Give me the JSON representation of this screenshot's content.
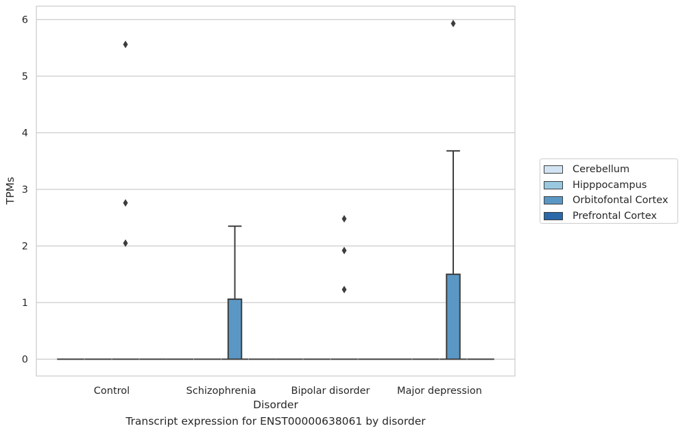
{
  "chart_data": {
    "type": "box",
    "title": "Transcript expression for ENST00000638061 by disorder",
    "xlabel": "Disorder",
    "ylabel": "TPMs",
    "categories": [
      "Control",
      "Schizophrenia",
      "Bipolar disorder",
      "Major depression"
    ],
    "y_ticks": [
      "0",
      "1",
      "2",
      "3",
      "4",
      "5",
      "6"
    ],
    "ylim": [
      -0.3,
      6.25
    ],
    "grid": "y",
    "legend_position": "right",
    "series": [
      {
        "name": "Cerebellum",
        "color": "#d2e3f3"
      },
      {
        "name": "Hipppocampus",
        "color": "#9ac8e0"
      },
      {
        "name": "Orbitofontal Cortex",
        "color": "#5a97c5"
      },
      {
        "name": "Prefrontal Cortex",
        "color": "#2a68aa"
      }
    ],
    "boxes": [
      {
        "category": "Control",
        "series": "Cerebellum",
        "q1": 0,
        "median": 0,
        "q3": 0,
        "whisker_low": 0,
        "whisker_high": 0,
        "outliers": []
      },
      {
        "category": "Control",
        "series": "Hipppocampus",
        "q1": 0,
        "median": 0,
        "q3": 0,
        "whisker_low": 0,
        "whisker_high": 0,
        "outliers": []
      },
      {
        "category": "Control",
        "series": "Orbitofontal Cortex",
        "q1": 0,
        "median": 0,
        "q3": 0,
        "whisker_low": 0,
        "whisker_high": 0,
        "outliers": [
          2.05,
          2.76,
          5.56
        ]
      },
      {
        "category": "Control",
        "series": "Prefrontal Cortex",
        "q1": 0,
        "median": 0,
        "q3": 0,
        "whisker_low": 0,
        "whisker_high": 0,
        "outliers": []
      },
      {
        "category": "Schizophrenia",
        "series": "Cerebellum",
        "q1": 0,
        "median": 0,
        "q3": 0,
        "whisker_low": 0,
        "whisker_high": 0,
        "outliers": []
      },
      {
        "category": "Schizophrenia",
        "series": "Hipppocampus",
        "q1": 0,
        "median": 0,
        "q3": 0,
        "whisker_low": 0,
        "whisker_high": 0,
        "outliers": []
      },
      {
        "category": "Schizophrenia",
        "series": "Orbitofontal Cortex",
        "q1": 0,
        "median": 0,
        "q3": 1.06,
        "whisker_low": 0,
        "whisker_high": 2.35,
        "outliers": []
      },
      {
        "category": "Schizophrenia",
        "series": "Prefrontal Cortex",
        "q1": 0,
        "median": 0,
        "q3": 0,
        "whisker_low": 0,
        "whisker_high": 0,
        "outliers": []
      },
      {
        "category": "Bipolar disorder",
        "series": "Cerebellum",
        "q1": 0,
        "median": 0,
        "q3": 0,
        "whisker_low": 0,
        "whisker_high": 0,
        "outliers": []
      },
      {
        "category": "Bipolar disorder",
        "series": "Hipppocampus",
        "q1": 0,
        "median": 0,
        "q3": 0,
        "whisker_low": 0,
        "whisker_high": 0,
        "outliers": []
      },
      {
        "category": "Bipolar disorder",
        "series": "Orbitofontal Cortex",
        "q1": 0,
        "median": 0,
        "q3": 0,
        "whisker_low": 0,
        "whisker_high": 0,
        "outliers": [
          1.23,
          1.92,
          2.48
        ]
      },
      {
        "category": "Bipolar disorder",
        "series": "Prefrontal Cortex",
        "q1": 0,
        "median": 0,
        "q3": 0,
        "whisker_low": 0,
        "whisker_high": 0,
        "outliers": []
      },
      {
        "category": "Major depression",
        "series": "Cerebellum",
        "q1": 0,
        "median": 0,
        "q3": 0,
        "whisker_low": 0,
        "whisker_high": 0,
        "outliers": []
      },
      {
        "category": "Major depression",
        "series": "Hipppocampus",
        "q1": 0,
        "median": 0,
        "q3": 0,
        "whisker_low": 0,
        "whisker_high": 0,
        "outliers": []
      },
      {
        "category": "Major depression",
        "series": "Orbitofontal Cortex",
        "q1": 0,
        "median": 0,
        "q3": 1.5,
        "whisker_low": 0,
        "whisker_high": 3.68,
        "outliers": [
          5.93
        ]
      },
      {
        "category": "Major depression",
        "series": "Prefrontal Cortex",
        "q1": 0,
        "median": 0,
        "q3": 0,
        "whisker_low": 0,
        "whisker_high": 0,
        "outliers": []
      }
    ]
  }
}
